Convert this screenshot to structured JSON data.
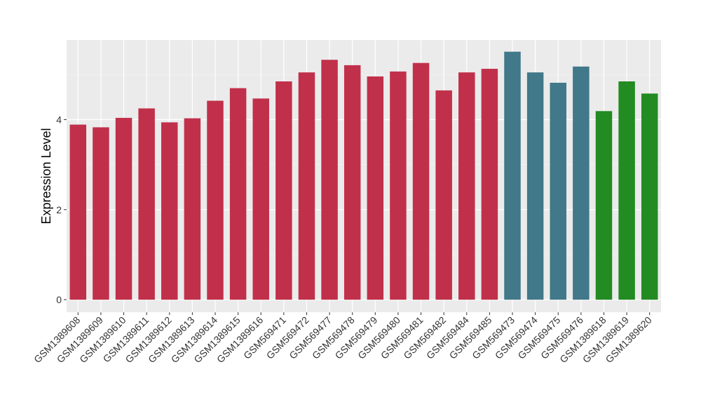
{
  "chart_data": {
    "type": "bar",
    "title": "",
    "xlabel": "",
    "ylabel": "Expression Level",
    "ylim": [
      -0.28,
      5.77
    ],
    "yticks": [
      0,
      2,
      4
    ],
    "grid": true,
    "legend": "none",
    "categories": [
      "GSM1389608",
      "GSM1389609",
      "GSM1389610",
      "GSM1389611",
      "GSM1389612",
      "GSM1389613",
      "GSM1389614",
      "GSM1389615",
      "GSM1389616",
      "GSM569471",
      "GSM569472",
      "GSM569477",
      "GSM569478",
      "GSM569479",
      "GSM569480",
      "GSM569481",
      "GSM569482",
      "GSM569484",
      "GSM569485",
      "GSM569473",
      "GSM569474",
      "GSM569475",
      "GSM569476",
      "GSM1389618",
      "GSM1389619",
      "GSM1389620"
    ],
    "values": [
      3.89,
      3.83,
      4.04,
      4.25,
      3.94,
      4.03,
      4.42,
      4.7,
      4.47,
      4.85,
      5.05,
      5.33,
      5.21,
      4.96,
      5.07,
      5.26,
      4.65,
      5.05,
      5.13,
      5.51,
      5.05,
      4.82,
      5.18,
      4.19,
      4.85,
      4.58
    ],
    "group_index": [
      0,
      0,
      0,
      0,
      0,
      0,
      0,
      0,
      0,
      0,
      0,
      0,
      0,
      0,
      0,
      0,
      0,
      0,
      0,
      1,
      1,
      1,
      1,
      2,
      2,
      2
    ],
    "group_colors": [
      "#c1304a",
      "#41788a",
      "#228b22"
    ]
  }
}
